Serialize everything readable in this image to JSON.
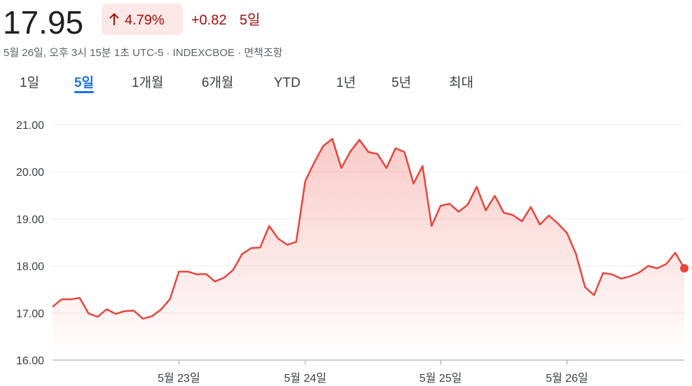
{
  "header": {
    "price": "17.95",
    "change_percent": "4.79%",
    "change": "+0.82",
    "period": "5일",
    "subtitle": "5월 26일, 오후 3시 15분 1초 UTC-5 · INDEXCBOE · 면책조항"
  },
  "tabs": {
    "items": [
      "1일",
      "5일",
      "1개월",
      "6개월",
      "YTD",
      "1년",
      "5년",
      "최대"
    ],
    "active": 1
  },
  "chart_data": {
    "type": "line",
    "categories": [
      null,
      null,
      null,
      null,
      null,
      null,
      null,
      null,
      null,
      null,
      null,
      null,
      null,
      null,
      "5월 23일",
      null,
      null,
      null,
      null,
      null,
      null,
      null,
      null,
      null,
      null,
      null,
      null,
      null,
      "5월 24일",
      null,
      null,
      null,
      null,
      null,
      null,
      null,
      null,
      null,
      null,
      null,
      null,
      null,
      null,
      "5월 25일",
      null,
      null,
      null,
      null,
      null,
      null,
      null,
      null,
      null,
      null,
      null,
      null,
      null,
      "5월 26일",
      null,
      null,
      null,
      null,
      null,
      null,
      null,
      null,
      null,
      null,
      null,
      null,
      null
    ],
    "series": [
      {
        "name": "INDEXCBOE",
        "color": "#e8453c",
        "values": [
          17.13,
          17.29,
          17.29,
          17.32,
          16.99,
          16.92,
          17.08,
          16.98,
          17.04,
          17.05,
          16.88,
          16.93,
          17.07,
          17.29,
          17.88,
          17.88,
          17.82,
          17.83,
          17.67,
          17.75,
          17.91,
          18.25,
          18.38,
          18.39,
          18.85,
          18.58,
          18.45,
          18.51,
          19.8,
          20.2,
          20.55,
          20.7,
          20.08,
          20.43,
          20.68,
          20.42,
          20.38,
          20.08,
          20.5,
          20.42,
          19.75,
          20.12,
          18.85,
          19.28,
          19.32,
          19.15,
          19.3,
          19.68,
          19.18,
          19.49,
          19.13,
          19.08,
          18.95,
          19.25,
          18.88,
          19.07,
          18.9,
          18.7,
          18.25,
          17.55,
          17.38,
          17.85,
          17.82,
          17.73,
          17.78,
          17.86,
          18.0,
          17.95,
          18.04,
          18.28,
          17.95
        ]
      }
    ],
    "ylim": [
      16,
      21
    ],
    "yticks": [
      {
        "value": 16,
        "label": "16.00"
      },
      {
        "value": 17,
        "label": "17.00"
      },
      {
        "value": 18,
        "label": "18.00"
      },
      {
        "value": 19,
        "label": "19.00"
      },
      {
        "value": 20,
        "label": "20.00"
      },
      {
        "value": 21,
        "label": "21.00"
      }
    ],
    "grid": true
  }
}
